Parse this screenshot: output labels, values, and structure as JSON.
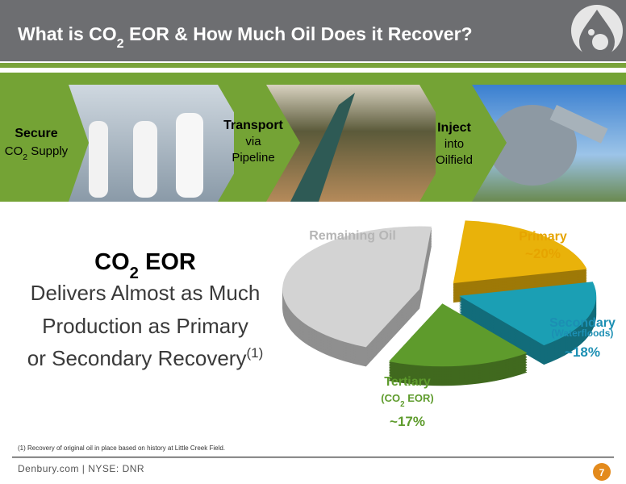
{
  "header": {
    "title": [
      "What is CO",
      "2",
      " EOR & How Much Oil Does it Recover?"
    ]
  },
  "steps": [
    {
      "title": "Secure",
      "lines": [
        "CO",
        "2",
        " Supply"
      ]
    },
    {
      "title": "Transport",
      "lines": [
        "via",
        "Pipeline"
      ]
    },
    {
      "title": "Inject",
      "lines": [
        "into",
        "Oilfield"
      ]
    }
  ],
  "headline": {
    "title": [
      "CO",
      "2",
      " EOR"
    ],
    "lines": [
      "Delivers Almost as Much",
      "Production as Primary",
      "or Secondary Recovery"
    ],
    "note_ref": "(1)"
  },
  "chart_data": {
    "type": "pie",
    "categories": [
      "Primary",
      "Secondary",
      "Tertiary",
      "Remaining Oil"
    ],
    "sublabels": [
      null,
      "(Waterfloods)",
      [
        "(CO",
        "2",
        " EOR)"
      ],
      null
    ],
    "values": [
      20,
      18,
      17,
      45
    ],
    "value_labels": [
      "~20%",
      "~18%",
      "~17%",
      null
    ],
    "colors": [
      "#e9b20a",
      "#1b9fb4",
      "#5e9b2c",
      "#d3d3d3"
    ],
    "label_colors": [
      "#e6a400",
      "#1c8fb3",
      "#5e9b2c",
      "#b5b5b5"
    ]
  },
  "footnote": "(1) Recovery of original oil in place based on history at Little Creek Field.",
  "footer": {
    "site": "Denbury.com  |  NYSE: DNR",
    "page": "7"
  }
}
